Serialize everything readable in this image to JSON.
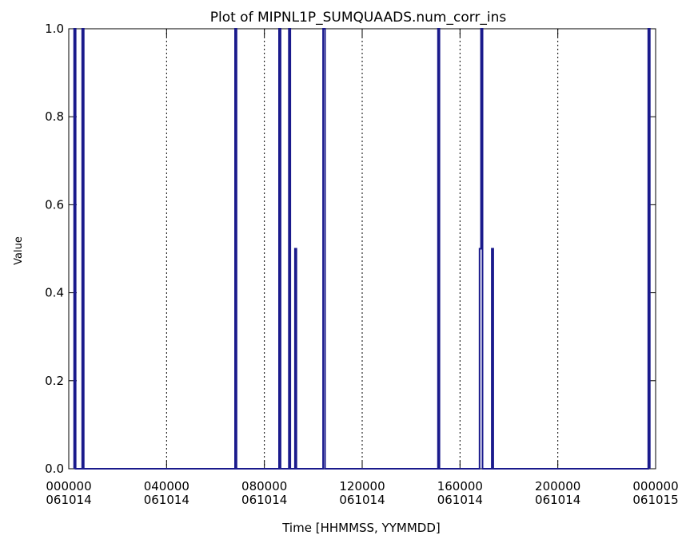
{
  "chart_data": {
    "type": "line",
    "title": "Plot of MIPNL1P_SUMQUAADS.num_corr_ins",
    "xlabel": "Time [HHMMSS, YYMMDD]",
    "ylabel": "Value",
    "x_unit": "hours",
    "xlim": [
      0,
      24
    ],
    "ylim": [
      0,
      1
    ],
    "y_ticks": [
      "0.0",
      "0.2",
      "0.4",
      "0.6",
      "0.8",
      "1.0"
    ],
    "x_ticks": [
      {
        "x": 0,
        "time": "000000",
        "date": "061014"
      },
      {
        "x": 4,
        "time": "040000",
        "date": "061014"
      },
      {
        "x": 8,
        "time": "080000",
        "date": "061014"
      },
      {
        "x": 12,
        "time": "120000",
        "date": "061014"
      },
      {
        "x": 16,
        "time": "160000",
        "date": "061014"
      },
      {
        "x": 20,
        "time": "200000",
        "date": "061014"
      },
      {
        "x": 24,
        "time": "000000",
        "date": "061015"
      }
    ],
    "vertical_gridlines_x": [
      4,
      8,
      12,
      16,
      20
    ],
    "grid_style": "dotted vertical lines",
    "line_color": "#1a1a8c",
    "series": [
      {
        "points": [
          [
            0.22,
            0
          ],
          [
            0.22,
            1
          ],
          [
            0.28,
            1
          ],
          [
            0.28,
            0
          ],
          [
            0.55,
            0
          ],
          [
            0.55,
            1
          ],
          [
            0.61,
            1
          ],
          [
            0.61,
            0
          ],
          [
            0.75,
            0
          ],
          [
            6.1,
            0
          ],
          [
            6.8,
            0
          ],
          [
            6.8,
            1
          ],
          [
            6.86,
            1
          ],
          [
            6.86,
            0
          ],
          [
            7.0,
            0
          ],
          [
            8.6,
            0
          ],
          [
            8.6,
            1
          ],
          [
            8.66,
            1
          ],
          [
            8.66,
            0
          ],
          [
            9.0,
            0
          ],
          [
            9.0,
            1
          ],
          [
            9.06,
            1
          ],
          [
            9.06,
            0
          ],
          [
            9.25,
            0
          ],
          [
            9.25,
            0.5
          ],
          [
            9.31,
            0.5
          ],
          [
            9.31,
            0
          ],
          [
            10.4,
            0
          ],
          [
            10.4,
            1
          ],
          [
            10.48,
            1
          ],
          [
            10.48,
            0
          ],
          [
            14.5,
            0
          ],
          [
            15.1,
            0
          ],
          [
            15.1,
            1
          ],
          [
            15.16,
            1
          ],
          [
            15.16,
            0
          ],
          [
            16.8,
            0
          ],
          [
            16.8,
            0.5
          ],
          [
            16.86,
            0.5
          ],
          [
            16.86,
            1
          ],
          [
            16.92,
            1
          ],
          [
            16.92,
            0
          ],
          [
            17.3,
            0
          ],
          [
            17.3,
            0.5
          ],
          [
            17.36,
            0.5
          ],
          [
            17.36,
            0
          ],
          [
            22.9,
            0
          ],
          [
            23.7,
            0
          ],
          [
            23.7,
            1
          ],
          [
            23.76,
            1
          ],
          [
            23.76,
            0
          ]
        ]
      }
    ]
  }
}
